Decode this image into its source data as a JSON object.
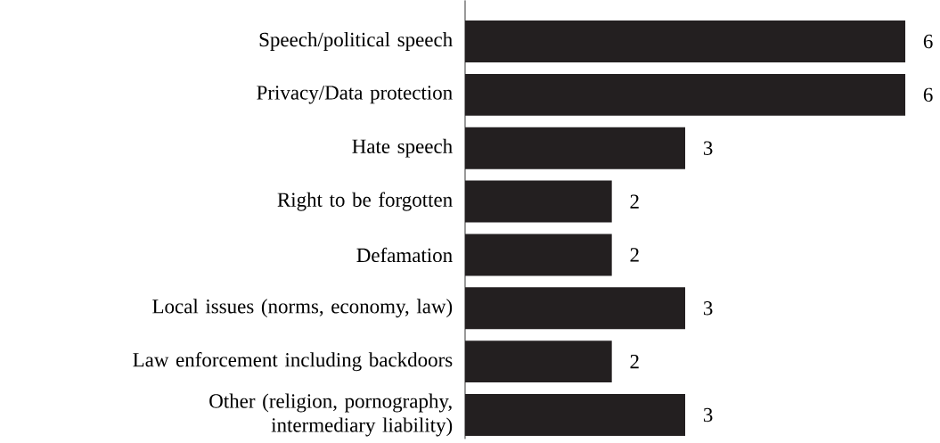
{
  "chart_data": {
    "type": "bar",
    "orientation": "horizontal",
    "categories": [
      "Speech/political speech",
      "Privacy/Data protection",
      "Hate speech",
      "Right to be forgotten",
      "Defamation",
      "Local issues (norms, economy, law)",
      "Law enforcement including backdoors",
      "Other (religion, pornography, intermediary liability)"
    ],
    "values": [
      6,
      6,
      3,
      2,
      2,
      3,
      2,
      3
    ],
    "color": "#231f20",
    "data_labels": true
  }
}
